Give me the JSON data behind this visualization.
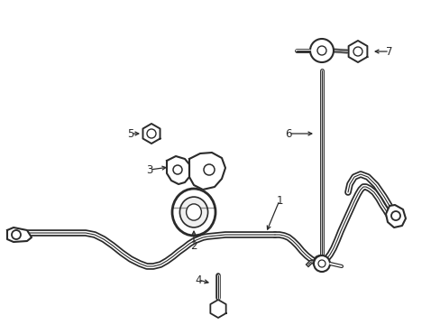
{
  "background_color": "#ffffff",
  "line_color": "#2a2a2a",
  "bar_tube_lw_outer": 5.5,
  "bar_tube_lw_white": 3.0,
  "bar_tube_lw_inner": 0.8,
  "font_size": 8.5
}
